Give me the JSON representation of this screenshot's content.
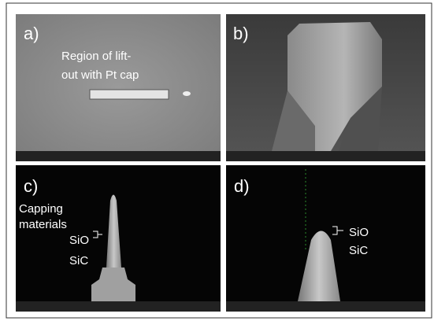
{
  "panels": [
    {
      "label": "a)",
      "annotations": [
        "Region of lift-",
        "out with Pt cap"
      ]
    },
    {
      "label": "b)"
    },
    {
      "label": "c)",
      "annotations": [
        "Capping",
        "materials",
        "SiO",
        "SiC"
      ]
    },
    {
      "label": "d)",
      "annotations": [
        "SiO",
        "SiC"
      ]
    }
  ]
}
